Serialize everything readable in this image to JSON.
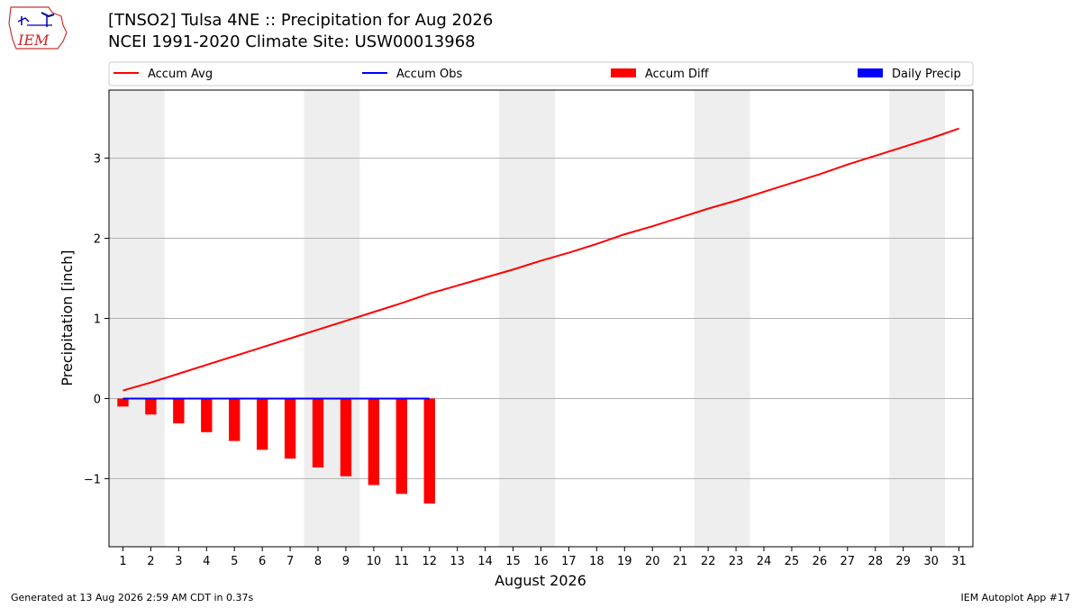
{
  "header": {
    "title": "[TNSO2] Tulsa 4NE :: Precipitation for Aug 2026",
    "subtitle": "NCEI 1991-2020 Climate Site: USW00013968",
    "logo_text": "IEM"
  },
  "footer": {
    "generated": "Generated at 13 Aug 2026 2:59 AM CDT in 0.37s",
    "app": "IEM Autoplot App #17"
  },
  "colors": {
    "accum_avg": "#ff0000",
    "accum_obs": "#0000ff",
    "accum_diff": "#ff0000",
    "daily_precip": "#0000ff",
    "weekend_shade": "#eeeeee",
    "grid": "#b0b0b0"
  },
  "chart_data": {
    "type": "line",
    "xlabel": "August 2026",
    "ylabel": "Precipitation [inch]",
    "xlim": [
      0.5,
      31.5
    ],
    "ylim": [
      -1.85,
      3.85
    ],
    "yticks": [
      -1,
      0,
      1,
      2,
      3
    ],
    "ytick_labels": [
      "−1",
      "0",
      "1",
      "2",
      "3"
    ],
    "x": [
      1,
      2,
      3,
      4,
      5,
      6,
      7,
      8,
      9,
      10,
      11,
      12,
      13,
      14,
      15,
      16,
      17,
      18,
      19,
      20,
      21,
      22,
      23,
      24,
      25,
      26,
      27,
      28,
      29,
      30,
      31
    ],
    "weekend_spans": [
      [
        0.5,
        2.5
      ],
      [
        7.5,
        9.5
      ],
      [
        14.5,
        16.5
      ],
      [
        21.5,
        23.5
      ],
      [
        28.5,
        30.5
      ]
    ],
    "grid": "y",
    "legend_position": "top",
    "legend": [
      "Accum Avg",
      "Accum Obs",
      "Accum Diff",
      "Daily Precip"
    ],
    "series": [
      {
        "name": "Accum Avg",
        "kind": "line",
        "x": [
          1,
          2,
          3,
          4,
          5,
          6,
          7,
          8,
          9,
          10,
          11,
          12,
          13,
          14,
          15,
          16,
          17,
          18,
          19,
          20,
          21,
          22,
          23,
          24,
          25,
          26,
          27,
          28,
          29,
          30,
          31
        ],
        "values": [
          0.1,
          0.2,
          0.31,
          0.42,
          0.53,
          0.64,
          0.75,
          0.86,
          0.97,
          1.08,
          1.19,
          1.31,
          1.41,
          1.51,
          1.61,
          1.72,
          1.82,
          1.93,
          2.05,
          2.15,
          2.26,
          2.37,
          2.47,
          2.58,
          2.69,
          2.8,
          2.92,
          3.03,
          3.14,
          3.25,
          3.37
        ]
      },
      {
        "name": "Accum Obs",
        "kind": "line",
        "x": [
          1,
          2,
          3,
          4,
          5,
          6,
          7,
          8,
          9,
          10,
          11,
          12
        ],
        "values": [
          0,
          0,
          0,
          0,
          0,
          0,
          0,
          0,
          0,
          0,
          0,
          0
        ]
      },
      {
        "name": "Accum Diff",
        "kind": "bar",
        "x": [
          1,
          2,
          3,
          4,
          5,
          6,
          7,
          8,
          9,
          10,
          11,
          12
        ],
        "values": [
          -0.1,
          -0.2,
          -0.31,
          -0.42,
          -0.53,
          -0.64,
          -0.75,
          -0.86,
          -0.97,
          -1.08,
          -1.19,
          -1.31
        ]
      },
      {
        "name": "Daily Precip",
        "kind": "bar",
        "x": [
          1,
          2,
          3,
          4,
          5,
          6,
          7,
          8,
          9,
          10,
          11,
          12
        ],
        "values": [
          0,
          0,
          0,
          0,
          0,
          0,
          0,
          0,
          0,
          0,
          0,
          0
        ]
      }
    ]
  }
}
